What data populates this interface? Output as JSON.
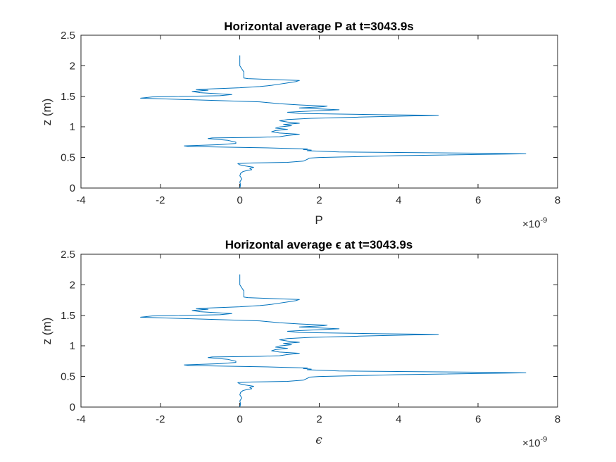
{
  "chart_data": [
    {
      "type": "line",
      "title": "Horizontal average P at t=3043.9s",
      "xlabel": "P",
      "xlabel_style": "plain",
      "ylabel": "z (m)",
      "x_exponent": "×10",
      "x_exponent_power": "-9",
      "xlim": [
        -4,
        8
      ],
      "ylim": [
        0,
        2.5
      ],
      "xticks": [
        -4,
        -2,
        0,
        2,
        4,
        6,
        8
      ],
      "xtick_labels": [
        "-4",
        "-2",
        "0",
        "2",
        "4",
        "6",
        "8"
      ],
      "yticks": [
        0,
        0.5,
        1,
        1.5,
        2,
        2.5
      ],
      "ytick_labels": [
        "0",
        "0.5",
        "1",
        "1.5",
        "2",
        "2.5"
      ],
      "grid": false,
      "box": true,
      "color": "#0072BD",
      "series": [
        {
          "x_units": "1e-9",
          "points": [
            [
              0.0,
              0.0
            ],
            [
              0.02,
              0.05
            ],
            [
              0.0,
              0.1
            ],
            [
              0.05,
              0.15
            ],
            [
              0.0,
              0.2
            ],
            [
              0.02,
              0.24
            ],
            [
              0.08,
              0.27
            ],
            [
              0.2,
              0.29
            ],
            [
              0.3,
              0.3
            ],
            [
              0.25,
              0.32
            ],
            [
              0.35,
              0.34
            ],
            [
              0.15,
              0.36
            ],
            [
              0.0,
              0.38
            ],
            [
              -0.05,
              0.4
            ],
            [
              0.3,
              0.41
            ],
            [
              1.2,
              0.42
            ],
            [
              1.6,
              0.44
            ],
            [
              1.7,
              0.47
            ],
            [
              1.75,
              0.49
            ],
            [
              2.0,
              0.5
            ],
            [
              4.0,
              0.53
            ],
            [
              7.2,
              0.56
            ],
            [
              6.0,
              0.57
            ],
            [
              2.5,
              0.59
            ],
            [
              1.7,
              0.61
            ],
            [
              1.8,
              0.62
            ],
            [
              1.6,
              0.63
            ],
            [
              1.7,
              0.64
            ],
            [
              0.5,
              0.66
            ],
            [
              -1.3,
              0.68
            ],
            [
              -1.4,
              0.69
            ],
            [
              -0.5,
              0.71
            ],
            [
              -0.1,
              0.73
            ],
            [
              -0.1,
              0.75
            ],
            [
              -0.3,
              0.78
            ],
            [
              -0.8,
              0.81
            ],
            [
              -0.7,
              0.82
            ],
            [
              0.5,
              0.83
            ],
            [
              1.0,
              0.84
            ],
            [
              1.2,
              0.86
            ],
            [
              1.5,
              0.88
            ],
            [
              1.0,
              0.9
            ],
            [
              0.8,
              0.92
            ],
            [
              0.9,
              0.94
            ],
            [
              1.2,
              0.96
            ],
            [
              0.9,
              0.98
            ],
            [
              1.0,
              1.0
            ],
            [
              1.3,
              1.02
            ],
            [
              1.1,
              1.04
            ],
            [
              1.5,
              1.06
            ],
            [
              1.2,
              1.08
            ],
            [
              1.0,
              1.1
            ],
            [
              1.2,
              1.12
            ],
            [
              1.8,
              1.14
            ],
            [
              3.0,
              1.16
            ],
            [
              5.0,
              1.19
            ],
            [
              3.5,
              1.2
            ],
            [
              1.5,
              1.22
            ],
            [
              1.2,
              1.24
            ],
            [
              1.8,
              1.26
            ],
            [
              2.5,
              1.28
            ],
            [
              1.8,
              1.3
            ],
            [
              1.5,
              1.31
            ],
            [
              2.1,
              1.33
            ],
            [
              2.2,
              1.34
            ],
            [
              1.5,
              1.36
            ],
            [
              1.0,
              1.38
            ],
            [
              0.5,
              1.41
            ],
            [
              -1.0,
              1.44
            ],
            [
              -2.5,
              1.47
            ],
            [
              -2.2,
              1.49
            ],
            [
              -0.5,
              1.51
            ],
            [
              -0.2,
              1.53
            ],
            [
              -1.0,
              1.56
            ],
            [
              -1.2,
              1.58
            ],
            [
              -0.8,
              1.6
            ],
            [
              -1.1,
              1.61
            ],
            [
              -0.8,
              1.62
            ],
            [
              0.0,
              1.64
            ],
            [
              0.5,
              1.66
            ],
            [
              0.8,
              1.68
            ],
            [
              1.0,
              1.7
            ],
            [
              1.2,
              1.72
            ],
            [
              1.4,
              1.74
            ],
            [
              1.5,
              1.76
            ],
            [
              0.6,
              1.78
            ],
            [
              0.2,
              1.79
            ],
            [
              0.1,
              1.8
            ],
            [
              0.1,
              1.9
            ],
            [
              0.0,
              2.0
            ],
            [
              0.0,
              2.1
            ],
            [
              0.0,
              2.17
            ]
          ]
        }
      ]
    },
    {
      "type": "line",
      "title": "Horizontal average ϵ at t=3043.9s",
      "xlabel": "ϵ",
      "xlabel_style": "italic",
      "ylabel": "z (m)",
      "x_exponent": "×10",
      "x_exponent_power": "-9",
      "xlim": [
        -4,
        8
      ],
      "ylim": [
        0,
        2.5
      ],
      "xticks": [
        -4,
        -2,
        0,
        2,
        4,
        6,
        8
      ],
      "xtick_labels": [
        "-4",
        "-2",
        "0",
        "2",
        "4",
        "6",
        "8"
      ],
      "yticks": [
        0,
        0.5,
        1,
        1.5,
        2,
        2.5
      ],
      "ytick_labels": [
        "0",
        "0.5",
        "1",
        "1.5",
        "2",
        "2.5"
      ],
      "grid": false,
      "box": true,
      "color": "#0072BD",
      "series": [
        {
          "x_units": "1e-9",
          "points": [
            [
              0.0,
              0.0
            ],
            [
              0.02,
              0.05
            ],
            [
              0.0,
              0.1
            ],
            [
              0.05,
              0.15
            ],
            [
              0.0,
              0.2
            ],
            [
              0.02,
              0.24
            ],
            [
              0.08,
              0.27
            ],
            [
              0.2,
              0.29
            ],
            [
              0.3,
              0.3
            ],
            [
              0.25,
              0.32
            ],
            [
              0.35,
              0.34
            ],
            [
              0.15,
              0.36
            ],
            [
              0.0,
              0.38
            ],
            [
              -0.05,
              0.4
            ],
            [
              0.3,
              0.41
            ],
            [
              1.2,
              0.42
            ],
            [
              1.6,
              0.44
            ],
            [
              1.7,
              0.47
            ],
            [
              1.75,
              0.49
            ],
            [
              2.0,
              0.5
            ],
            [
              4.0,
              0.53
            ],
            [
              7.2,
              0.56
            ],
            [
              6.0,
              0.57
            ],
            [
              2.5,
              0.59
            ],
            [
              1.7,
              0.61
            ],
            [
              1.8,
              0.62
            ],
            [
              1.6,
              0.63
            ],
            [
              1.7,
              0.64
            ],
            [
              0.5,
              0.66
            ],
            [
              -1.3,
              0.68
            ],
            [
              -1.4,
              0.69
            ],
            [
              -0.5,
              0.71
            ],
            [
              -0.1,
              0.73
            ],
            [
              -0.1,
              0.75
            ],
            [
              -0.3,
              0.78
            ],
            [
              -0.8,
              0.81
            ],
            [
              -0.7,
              0.82
            ],
            [
              0.5,
              0.83
            ],
            [
              1.0,
              0.84
            ],
            [
              1.2,
              0.86
            ],
            [
              1.5,
              0.88
            ],
            [
              1.0,
              0.9
            ],
            [
              0.8,
              0.92
            ],
            [
              0.9,
              0.94
            ],
            [
              1.2,
              0.96
            ],
            [
              0.9,
              0.98
            ],
            [
              1.0,
              1.0
            ],
            [
              1.3,
              1.02
            ],
            [
              1.1,
              1.04
            ],
            [
              1.5,
              1.06
            ],
            [
              1.2,
              1.08
            ],
            [
              1.0,
              1.1
            ],
            [
              1.2,
              1.12
            ],
            [
              1.8,
              1.14
            ],
            [
              3.0,
              1.16
            ],
            [
              5.0,
              1.19
            ],
            [
              3.5,
              1.2
            ],
            [
              1.5,
              1.22
            ],
            [
              1.2,
              1.24
            ],
            [
              1.8,
              1.26
            ],
            [
              2.5,
              1.28
            ],
            [
              1.8,
              1.3
            ],
            [
              1.5,
              1.31
            ],
            [
              2.1,
              1.33
            ],
            [
              2.2,
              1.34
            ],
            [
              1.5,
              1.36
            ],
            [
              1.0,
              1.38
            ],
            [
              0.5,
              1.41
            ],
            [
              -1.0,
              1.44
            ],
            [
              -2.5,
              1.47
            ],
            [
              -2.2,
              1.49
            ],
            [
              -0.5,
              1.51
            ],
            [
              -0.2,
              1.53
            ],
            [
              -1.0,
              1.56
            ],
            [
              -1.2,
              1.58
            ],
            [
              -0.8,
              1.6
            ],
            [
              -1.1,
              1.61
            ],
            [
              -0.8,
              1.62
            ],
            [
              0.0,
              1.64
            ],
            [
              0.5,
              1.66
            ],
            [
              0.8,
              1.68
            ],
            [
              1.0,
              1.7
            ],
            [
              1.2,
              1.72
            ],
            [
              1.4,
              1.74
            ],
            [
              1.5,
              1.76
            ],
            [
              0.6,
              1.78
            ],
            [
              0.2,
              1.79
            ],
            [
              0.1,
              1.8
            ],
            [
              0.1,
              1.9
            ],
            [
              0.0,
              2.0
            ],
            [
              0.0,
              2.1
            ],
            [
              0.0,
              2.17
            ]
          ]
        }
      ]
    }
  ]
}
